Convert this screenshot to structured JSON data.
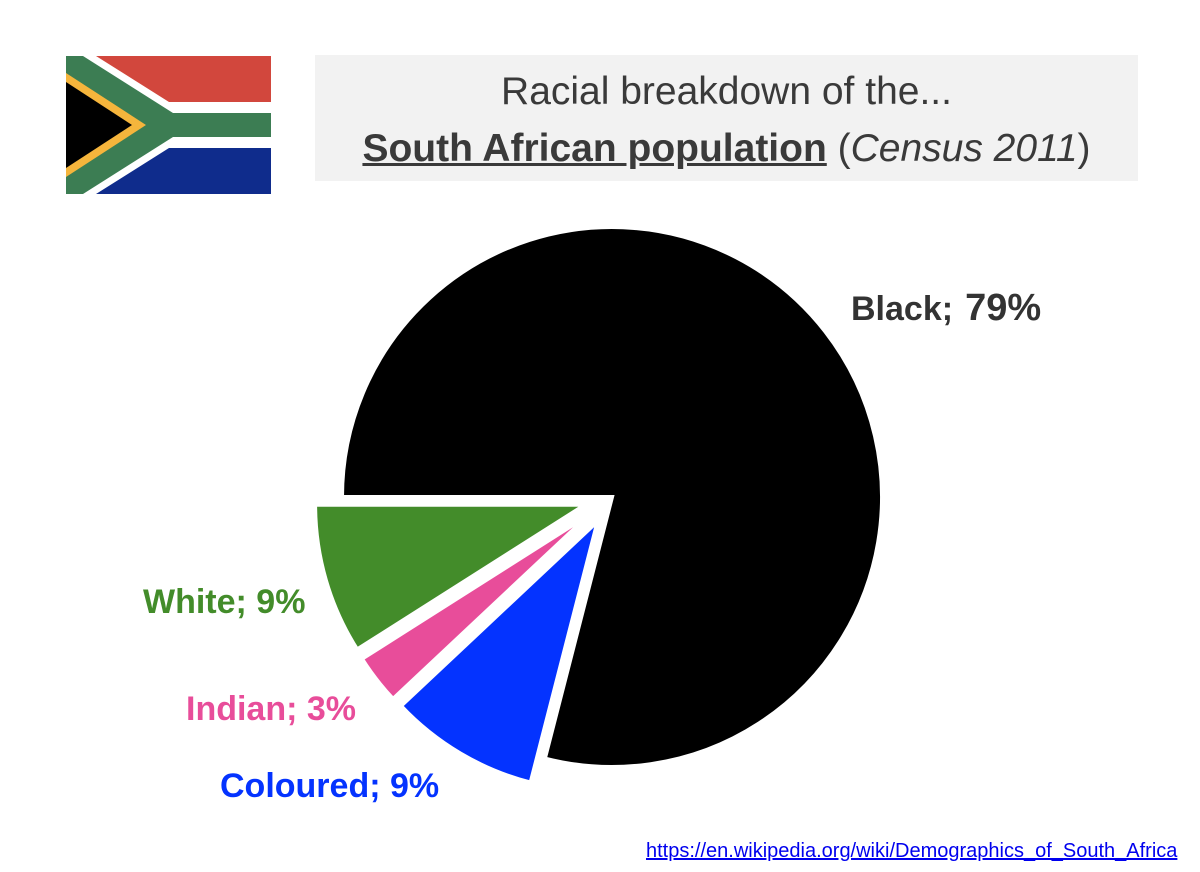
{
  "title": {
    "line1": "Racial breakdown of the...",
    "main": "South African population",
    "open_paren": " (",
    "census": "Census 2011",
    "close_paren": ")"
  },
  "chart_data": {
    "type": "pie",
    "title": "Racial breakdown of the... South African population (Census 2011)",
    "slices": [
      {
        "label": "Black",
        "value": 79,
        "display": "79%",
        "color": "#000000",
        "exploded": false
      },
      {
        "label": "Coloured",
        "value": 9,
        "display": "9%",
        "color": "#0433ff",
        "exploded": true
      },
      {
        "label": "Indian",
        "value": 3,
        "display": "3%",
        "color": "#e84d9a",
        "exploded": true
      },
      {
        "label": "White",
        "value": 9,
        "display": "9%",
        "color": "#438c2a",
        "exploded": true
      }
    ],
    "labels": {
      "black_name": "Black;",
      "black_value": "79%",
      "white": "White; 9%",
      "indian": "Indian; 3%",
      "coloured": "Coloured; 9%"
    }
  },
  "flag": {
    "colors": {
      "red": "#d2473d",
      "blue": "#0f2c8c",
      "green": "#3c7d53",
      "gold": "#f5b53c",
      "white": "#ffffff",
      "black": "#000000"
    }
  },
  "source": {
    "url_text": "https://en.wikipedia.org/wiki/Demographics_of_South_Africa"
  }
}
